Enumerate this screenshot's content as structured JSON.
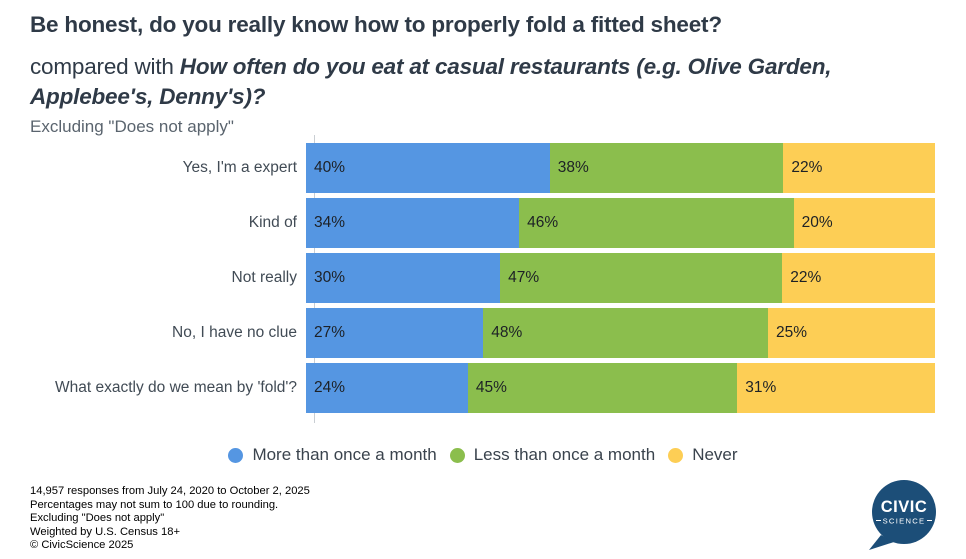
{
  "title": {
    "line1": "Be honest, do you really know how to properly fold a fitted sheet?",
    "compare_prefix": "compared with ",
    "compare_question": "How often do you eat at casual restaurants (e.g. Olive Garden, Applebee's, Denny's)?",
    "note": "Excluding \"Does not apply\""
  },
  "chart_data": {
    "type": "bar",
    "orientation": "horizontal",
    "stacked": true,
    "normalized": true,
    "title": "Be honest, do you really know how to properly fold a fitted sheet? compared with How often do you eat at casual restaurants (e.g. Olive Garden, Applebee's, Denny's)?",
    "categories": [
      "Yes, I'm a expert",
      "Kind of",
      "Not really",
      "No, I have no clue",
      "What exactly do we mean by 'fold'?"
    ],
    "series": [
      {
        "name": "More than once a month",
        "color": "#5596e2",
        "values": [
          40,
          34,
          30,
          27,
          24
        ]
      },
      {
        "name": "Less than once a month",
        "color": "#8bbe4d",
        "values": [
          38,
          46,
          47,
          48,
          45
        ]
      },
      {
        "name": "Never",
        "color": "#fdce55",
        "values": [
          22,
          20,
          22,
          25,
          31
        ]
      }
    ],
    "value_suffix": "%",
    "xlim": [
      0,
      100
    ],
    "grid": false,
    "legend_position": "bottom"
  },
  "footer": {
    "lines": [
      "14,957 responses from July 24, 2020 to October 2, 2025",
      "Percentages may not sum to 100 due to rounding.",
      "Excluding \"Does not apply\"",
      "Weighted by U.S. Census 18+",
      "© CivicScience 2025"
    ]
  },
  "logo": {
    "word1": "CIVIC",
    "word2": "SCIENCE",
    "bubble_color": "#1c4e78"
  }
}
